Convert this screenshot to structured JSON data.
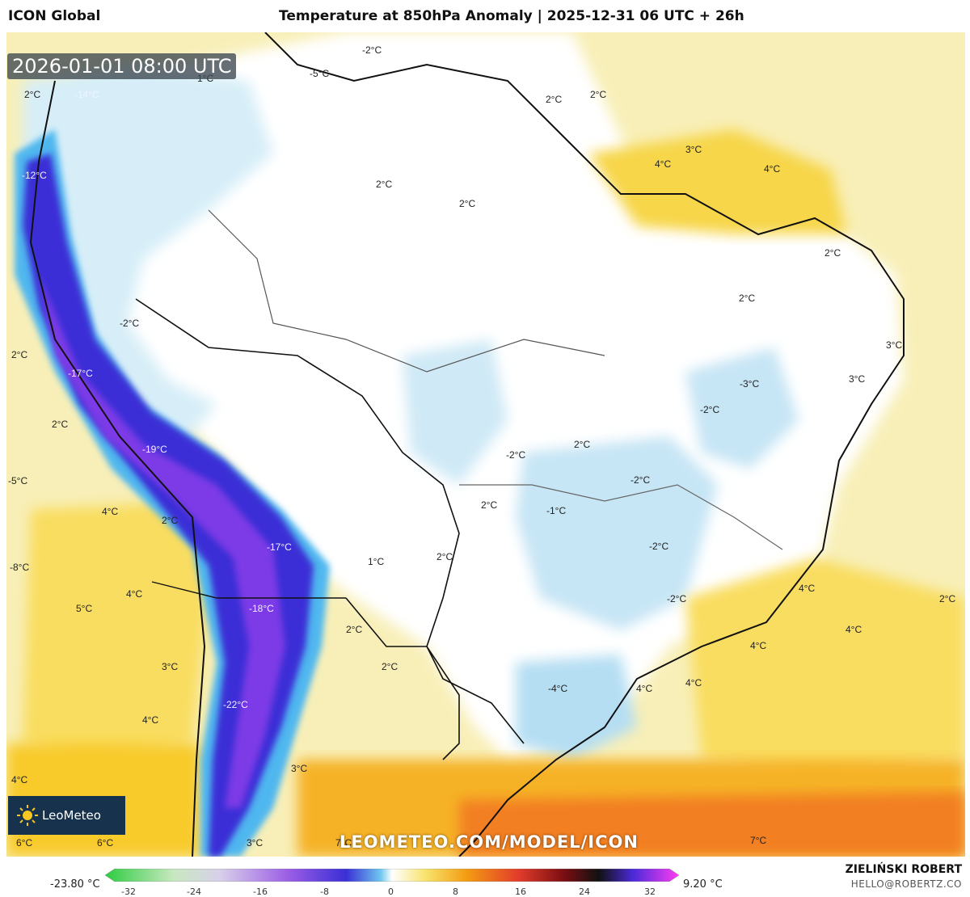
{
  "header": {
    "model": "ICON Global",
    "title": "Temperature at 850hPa Anomaly | 2025-12-31 06 UTC + 26h"
  },
  "timestamp": "2026-01-01 08:00 UTC",
  "watermark_url": "LEOMETEO.COM/MODEL/ICON",
  "logo_text": "LeoMeteo",
  "author": "ZIELIŃSKI ROBERT",
  "email": "HELLO@ROBERTZ.CO",
  "colorbar": {
    "min_label": "-23.80 °C",
    "max_label": "9.20 °C",
    "ticks": [
      "-32",
      "-24",
      "-16",
      "-8",
      "0",
      "8",
      "16",
      "24",
      "32"
    ]
  },
  "labels": [
    {
      "text": "2°C"
    },
    {
      "text": "-14°C"
    },
    {
      "text": "1°C"
    },
    {
      "text": "-2°C"
    },
    {
      "text": "-5°C"
    },
    {
      "text": "2°C"
    },
    {
      "text": "2°C"
    },
    {
      "text": "-12°C"
    },
    {
      "text": "2°C"
    },
    {
      "text": "2°C"
    },
    {
      "text": "3°C"
    },
    {
      "text": "4°C"
    },
    {
      "text": "4°C"
    },
    {
      "text": "2°C"
    },
    {
      "text": "2°C"
    },
    {
      "text": "-2°C"
    },
    {
      "text": "3°C"
    },
    {
      "text": "2°C"
    },
    {
      "text": "-17°C"
    },
    {
      "text": "-3°C"
    },
    {
      "text": "3°C"
    },
    {
      "text": "2°C"
    },
    {
      "text": "-2°C"
    },
    {
      "text": "2°C"
    },
    {
      "text": "-19°C"
    },
    {
      "text": "-2°C"
    },
    {
      "text": "-5°C"
    },
    {
      "text": "-2°C"
    },
    {
      "text": "4°C"
    },
    {
      "text": "2°C"
    },
    {
      "text": "2°C"
    },
    {
      "text": "-1°C"
    },
    {
      "text": "-17°C"
    },
    {
      "text": "-2°C"
    },
    {
      "text": "-8°C"
    },
    {
      "text": "1°C"
    },
    {
      "text": "2°C"
    },
    {
      "text": "4°C"
    },
    {
      "text": "5°C"
    },
    {
      "text": "4°C"
    },
    {
      "text": "-18°C"
    },
    {
      "text": "-2°C"
    },
    {
      "text": "2°C"
    },
    {
      "text": "2°C"
    },
    {
      "text": "4°C"
    },
    {
      "text": "4°C"
    },
    {
      "text": "3°C"
    },
    {
      "text": "2°C"
    },
    {
      "text": "-4°C"
    },
    {
      "text": "4°C"
    },
    {
      "text": "4°C"
    },
    {
      "text": "-22°C"
    },
    {
      "text": "4°C"
    },
    {
      "text": "3°C"
    },
    {
      "text": "4°C"
    },
    {
      "text": "6°C"
    },
    {
      "text": "6°C"
    },
    {
      "text": "3°C"
    },
    {
      "text": "7°C"
    },
    {
      "text": "7°C"
    }
  ]
}
